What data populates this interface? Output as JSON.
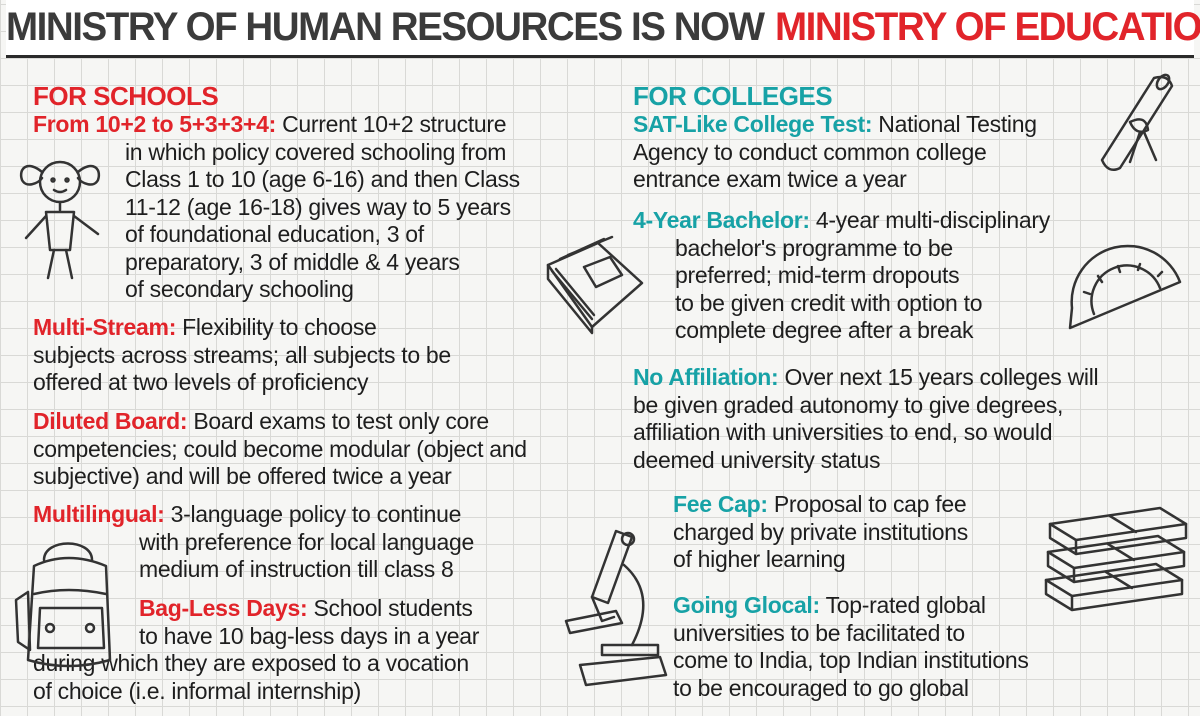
{
  "header": {
    "part1": "MINISTRY OF HUMAN RESOURCES IS NOW",
    "part2": "MINISTRY OF EDUCATION"
  },
  "schools": {
    "heading": "FOR SCHOOLS",
    "items": [
      {
        "label": "From 10+2 to 5+3+3+4:",
        "line1": " Current 10+2 structure",
        "rest": [
          "in which policy covered schooling from",
          "Class 1 to 10 (age 6-16) and then Class",
          "11-12 (age 16-18) gives way to 5 years",
          "of foundational education, 3 of",
          "preparatory, 3 of middle & 4 years",
          "of secondary schooling"
        ]
      },
      {
        "label": "Multi-Stream:",
        "line1": " Flexibility to choose",
        "rest": [
          "subjects across streams; all subjects to be",
          "offered at two levels of proficiency"
        ]
      },
      {
        "label": "Diluted Board:",
        "line1": " Board exams to test only core",
        "rest": [
          "competencies; could become modular (object and",
          "subjective) and will be offered twice a year"
        ]
      },
      {
        "label": "Multilingual:",
        "line1": " 3-language policy to continue",
        "rest": [
          "with preference for local language",
          "medium of instruction till class 8"
        ]
      },
      {
        "label": "Bag-Less Days:",
        "line1": " School students",
        "rest": [
          "to have 10 bag-less days in a year",
          "during which they are exposed to a vocation",
          "of choice (i.e. informal internship)"
        ]
      }
    ]
  },
  "colleges": {
    "heading": "FOR COLLEGES",
    "items": [
      {
        "label": "SAT-Like College Test:",
        "line1": " National Testing",
        "rest": [
          "Agency to conduct common college",
          "entrance exam twice a year"
        ]
      },
      {
        "label": "4-Year Bachelor:",
        "line1": " 4-year multi-disciplinary",
        "rest": [
          "bachelor's programme to be",
          "preferred; mid-term dropouts",
          "to be given credit with option to",
          "complete degree after a break"
        ]
      },
      {
        "label": "No Affiliation:",
        "line1": " Over next 15 years colleges will",
        "rest": [
          "be given graded autonomy to give degrees,",
          "affiliation with universities to end, so would",
          "deemed university status"
        ]
      },
      {
        "label": "Fee Cap:",
        "line1": " Proposal to cap fee",
        "rest": [
          "charged by private institutions",
          "of higher learning"
        ]
      },
      {
        "label": "Going Glocal:",
        "line1": " Top-rated global",
        "rest": [
          "universities to be facilitated to",
          "come to India, top Indian institutions",
          "to be encouraged to go global"
        ]
      }
    ]
  },
  "colors": {
    "red": "#e1242a",
    "teal": "#17a2a6",
    "text": "#1e1e1e",
    "header_dark": "#3b3b3b"
  },
  "illustrations": [
    "girl-doodle-icon",
    "book-icon",
    "backpack-icon",
    "microscope-icon",
    "diploma-scroll-icon",
    "protractor-icon",
    "money-stack-icon"
  ]
}
